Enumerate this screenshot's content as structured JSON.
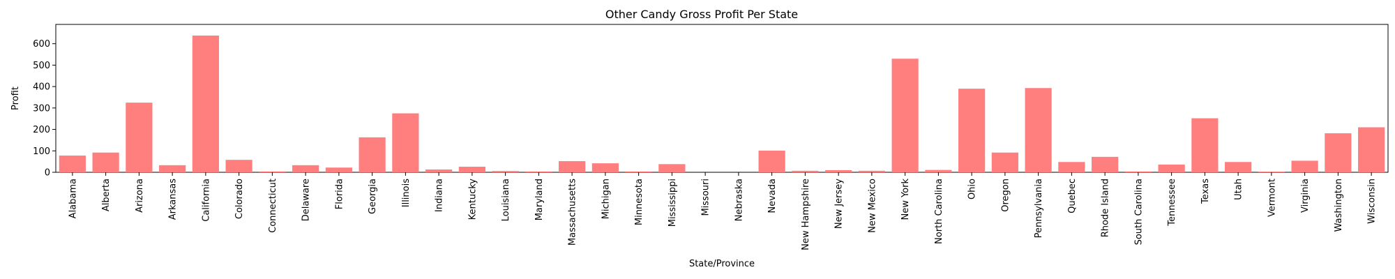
{
  "chart_data": {
    "type": "bar",
    "title": "Other Candy Gross Profit Per State",
    "xlabel": "State/Province",
    "ylabel": "Profit",
    "ylim": [
      0,
      690
    ],
    "yticks": [
      0,
      100,
      200,
      300,
      400,
      500,
      600
    ],
    "bar_color": "#ff7f7f",
    "grid": false,
    "categories": [
      "Alabama",
      "Alberta",
      "Arizona",
      "Arkansas",
      "California",
      "Colorado",
      "Connecticut",
      "Delaware",
      "Florida",
      "Georgia",
      "Illinois",
      "Indiana",
      "Kentucky",
      "Louisiana",
      "Maryland",
      "Massachusetts",
      "Michigan",
      "Minnesota",
      "Mississippi",
      "Missouri",
      "Nebraska",
      "Nevada",
      "New Hampshire",
      "New Jersey",
      "New Mexico",
      "New York",
      "North Carolina",
      "Ohio",
      "Oregon",
      "Pennsylvania",
      "Quebec",
      "Rhode Island",
      "South Carolina",
      "Tennessee",
      "Texas",
      "Utah",
      "Vermont",
      "Virginia",
      "Washington",
      "Wisconsin"
    ],
    "values": [
      78,
      92,
      325,
      33,
      638,
      58,
      4,
      33,
      22,
      163,
      275,
      13,
      26,
      6,
      4,
      52,
      42,
      4,
      38,
      0,
      0,
      101,
      7,
      10,
      7,
      530,
      11,
      390,
      92,
      393,
      48,
      72,
      4,
      36,
      252,
      48,
      3,
      54,
      182,
      210
    ]
  }
}
